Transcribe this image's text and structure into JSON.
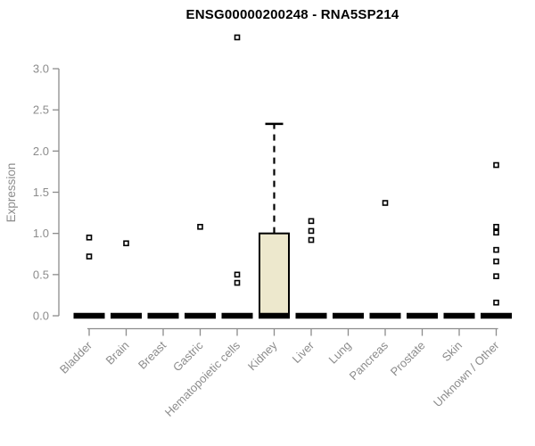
{
  "chart_data": {
    "type": "boxplot",
    "title": "ENSG00000200248 - RNA5SP214",
    "ylabel": "Expression",
    "xlabel": "",
    "ylim": [
      0,
      3.0
    ],
    "ytick_labels": [
      "0.0",
      "0.5",
      "1.0",
      "1.5",
      "2.0",
      "2.5",
      "3.0"
    ],
    "grid": false,
    "legend": null,
    "axis_color": "#8c8c8c",
    "box_fill": "#ede8cd",
    "box_stroke": "#000000",
    "marker": "open-square",
    "categories": [
      "Bladder",
      "Brain",
      "Breast",
      "Gastric",
      "Hematopoietic cells",
      "Kidney",
      "Liver",
      "Lung",
      "Pancreas",
      "Prostate",
      "Skin",
      "Unknown / Other"
    ],
    "series": [
      {
        "category": "Bladder",
        "q1": 0,
        "median": 0,
        "q3": 0,
        "whisker_low": 0,
        "whisker_high": 0,
        "outliers": [
          0.95,
          0.72
        ]
      },
      {
        "category": "Brain",
        "q1": 0,
        "median": 0,
        "q3": 0,
        "whisker_low": 0,
        "whisker_high": 0,
        "outliers": [
          0.88
        ]
      },
      {
        "category": "Breast",
        "q1": 0,
        "median": 0,
        "q3": 0,
        "whisker_low": 0,
        "whisker_high": 0,
        "outliers": []
      },
      {
        "category": "Gastric",
        "q1": 0,
        "median": 0,
        "q3": 0,
        "whisker_low": 0,
        "whisker_high": 0,
        "outliers": [
          1.08
        ]
      },
      {
        "category": "Hematopoietic cells",
        "q1": 0,
        "median": 0,
        "q3": 0,
        "whisker_low": 0,
        "whisker_high": 0,
        "outliers": [
          3.38,
          0.5,
          0.4
        ]
      },
      {
        "category": "Kidney",
        "q1": 0,
        "median": 0,
        "q3": 1.0,
        "whisker_low": 0,
        "whisker_high": 2.33,
        "outliers": []
      },
      {
        "category": "Liver",
        "q1": 0,
        "median": 0,
        "q3": 0,
        "whisker_low": 0,
        "whisker_high": 0,
        "outliers": [
          1.15,
          1.03,
          0.92
        ]
      },
      {
        "category": "Lung",
        "q1": 0,
        "median": 0,
        "q3": 0,
        "whisker_low": 0,
        "whisker_high": 0,
        "outliers": []
      },
      {
        "category": "Pancreas",
        "q1": 0,
        "median": 0,
        "q3": 0,
        "whisker_low": 0,
        "whisker_high": 0,
        "outliers": [
          1.37
        ]
      },
      {
        "category": "Prostate",
        "q1": 0,
        "median": 0,
        "q3": 0,
        "whisker_low": 0,
        "whisker_high": 0,
        "outliers": []
      },
      {
        "category": "Skin",
        "q1": 0,
        "median": 0,
        "q3": 0,
        "whisker_low": 0,
        "whisker_high": 0,
        "outliers": []
      },
      {
        "category": "Unknown / Other",
        "q1": 0,
        "median": 0,
        "q3": 0,
        "whisker_low": 0,
        "whisker_high": 0,
        "outliers": [
          1.83,
          1.08,
          1.01,
          0.8,
          0.66,
          0.48,
          0.16
        ]
      }
    ]
  }
}
